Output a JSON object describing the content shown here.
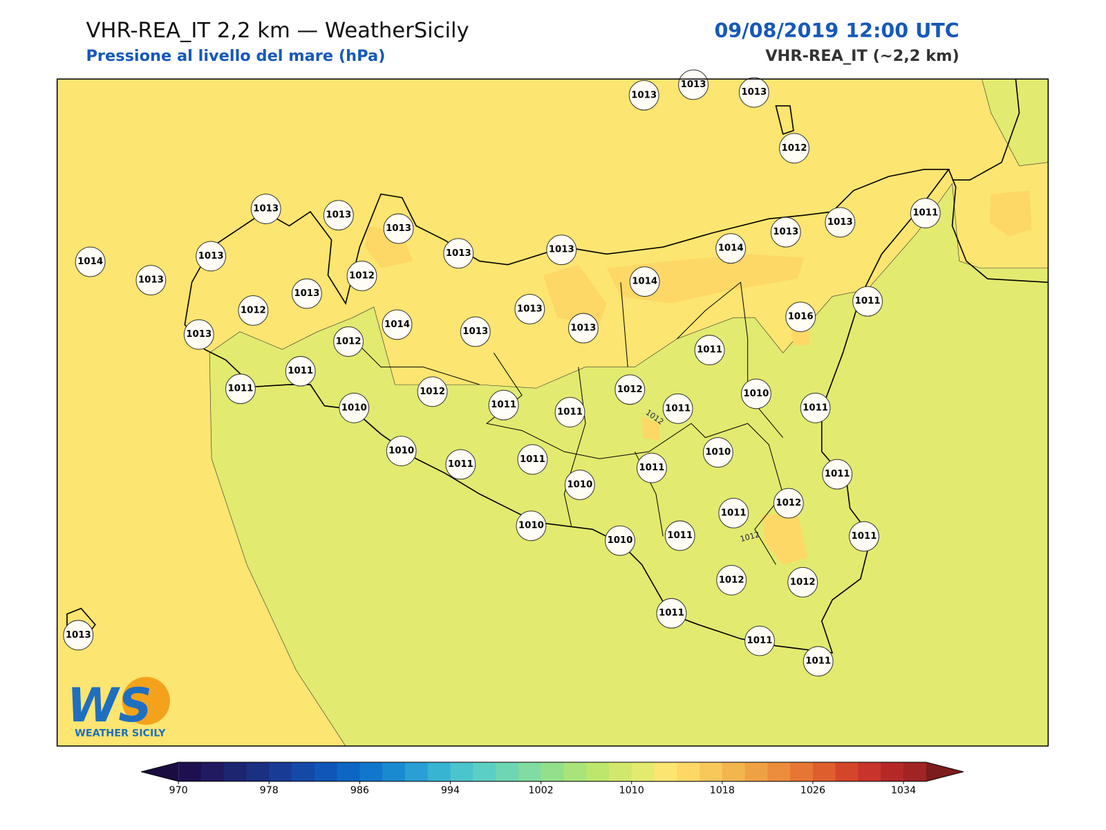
{
  "header": {
    "title": "VHR-REA_IT 2,2 km — WeatherSicily",
    "subtitle": "Pressione al livello del mare (hPa)",
    "date": "09/08/2019 12:00 UTC",
    "model": "VHR-REA_IT (~2,2 km)"
  },
  "station_values": [
    1013,
    1013,
    1013,
    1012,
    1013,
    1013,
    1013,
    1013,
    1013,
    1014,
    1013,
    1013,
    1011,
    1014,
    1013,
    1013,
    1012,
    1013,
    1014,
    1011,
    1012,
    1013,
    1014,
    1013,
    1013,
    1016,
    1013,
    1012,
    1011,
    1011,
    1011,
    1012,
    1012,
    1010,
    1010,
    1011,
    1011,
    1011,
    1011,
    1010,
    1011,
    1011,
    1010,
    1011,
    1011,
    1010,
    1012,
    1011,
    1010,
    1010,
    1011,
    1011,
    1012,
    1012,
    1011,
    1011,
    1011,
    1013
  ],
  "contour_labels": [
    1012,
    1012
  ],
  "logo": {
    "letters": "WS",
    "text": "WEATHER SICILY"
  },
  "colorbar": {
    "lim": [
      970,
      1036
    ],
    "ticks": [
      970,
      978,
      986,
      994,
      1002,
      1010,
      1018,
      1026,
      1034
    ],
    "colors": [
      "#1e1050",
      "#221a60",
      "#1c2670",
      "#1a3080",
      "#183c96",
      "#1449a8",
      "#1056b8",
      "#0c66c4",
      "#1077cc",
      "#1a8ad0",
      "#2a9fd4",
      "#36b4d2",
      "#4bc4cc",
      "#5ccfc4",
      "#6fd6b4",
      "#80dca0",
      "#92e08c",
      "#a8e47a",
      "#bde66c",
      "#d2e86c",
      "#e2ea6f",
      "#fce570",
      "#fdd866",
      "#f8c85a",
      "#f3b54e",
      "#efa244",
      "#eb8d3c",
      "#e67634",
      "#df5e2e",
      "#d4462c",
      "#c8332b",
      "#b52828",
      "#a02424"
    ],
    "under": "#1a0c40",
    "over": "#7c1c1c"
  }
}
